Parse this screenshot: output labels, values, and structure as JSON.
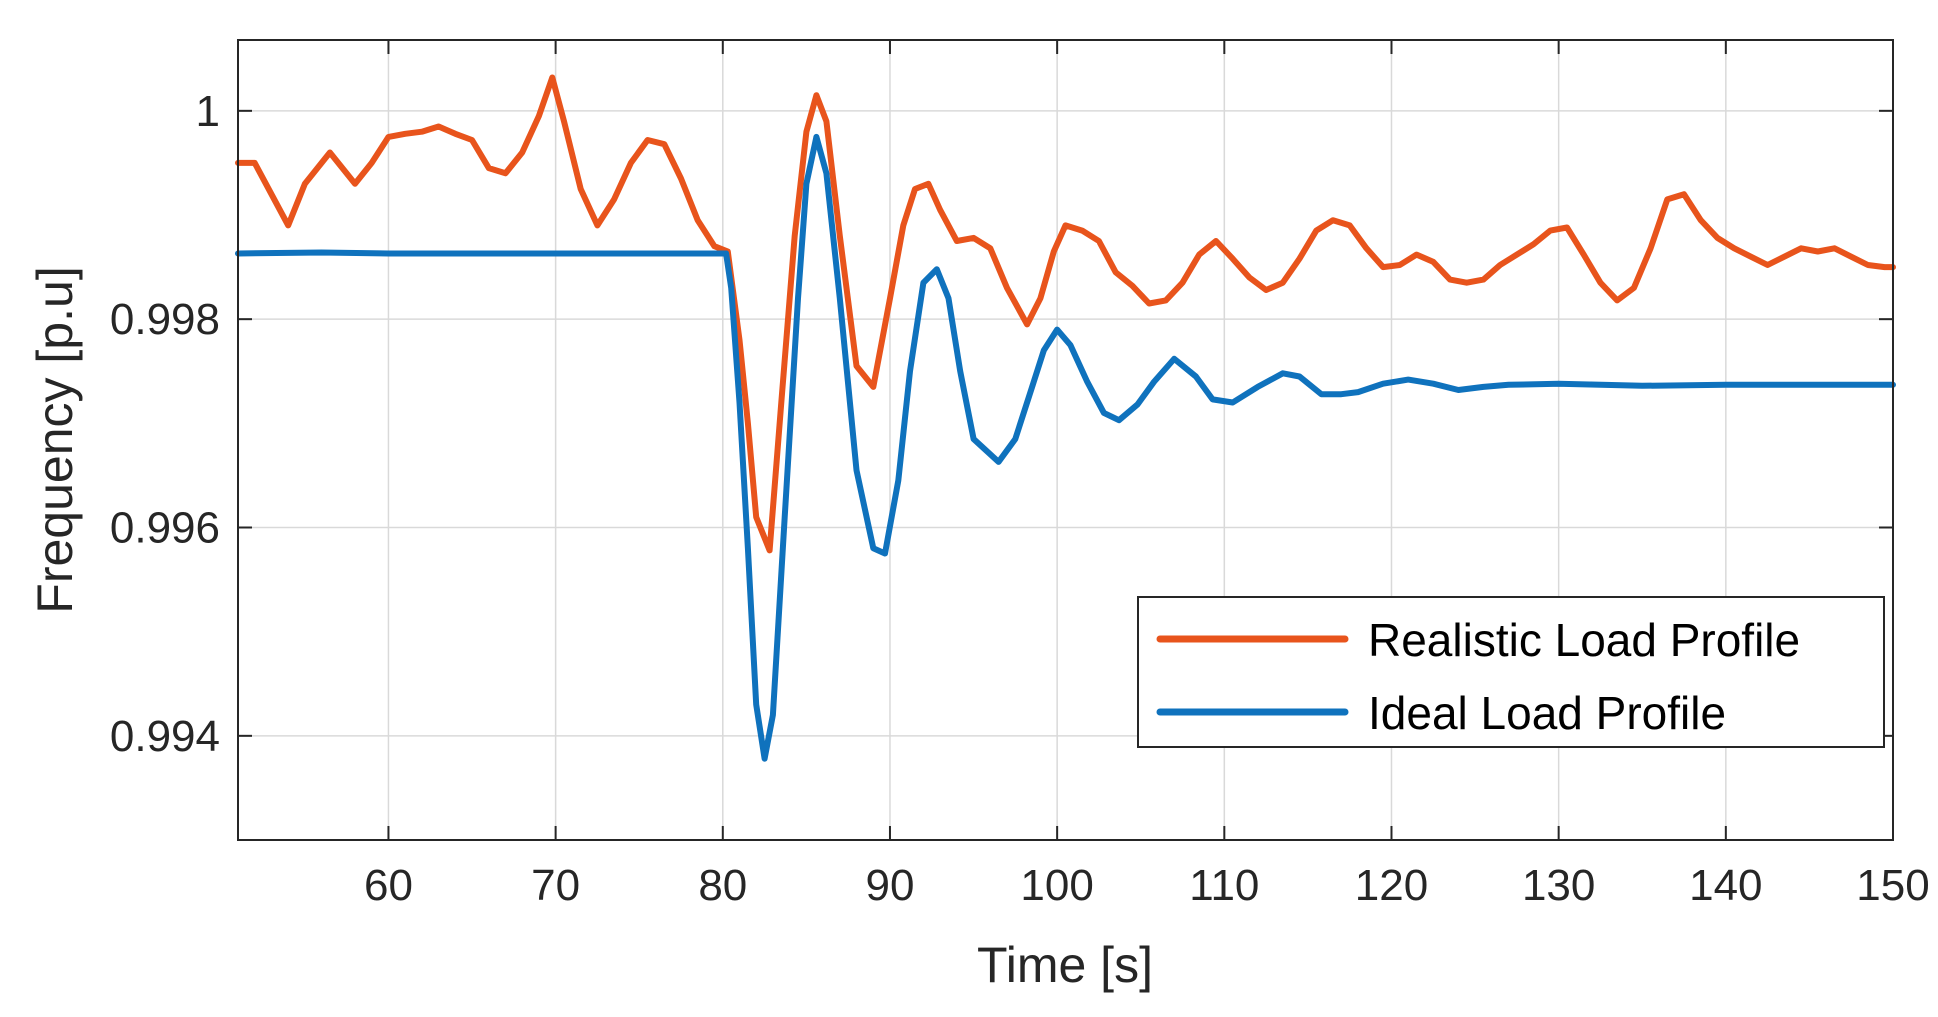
{
  "chart_data": {
    "type": "line",
    "title": "",
    "xlabel": "Time [s]",
    "ylabel": "Frequency [p.u]",
    "xlim": [
      51,
      150
    ],
    "ylim": [
      0.993,
      1.00068
    ],
    "grid": true,
    "legend_position": "bottom-right",
    "x_ticks": [
      60,
      70,
      80,
      90,
      100,
      110,
      120,
      130,
      140,
      150
    ],
    "y_ticks": [
      0.994,
      0.996,
      0.998,
      1.0
    ],
    "x_tick_labels": [
      "60",
      "70",
      "80",
      "90",
      "100",
      "110",
      "120",
      "130",
      "140",
      "150"
    ],
    "y_tick_labels": [
      "0.994",
      "0.996",
      "0.998",
      "1"
    ],
    "colors": {
      "realistic": "#E8541C",
      "ideal": "#0F72BD"
    },
    "series": [
      {
        "name": "Realistic Load Profile",
        "color": "#E8541C",
        "x": [
          51,
          52,
          54,
          55,
          56.5,
          58,
          59,
          60,
          61,
          62,
          63,
          64,
          65,
          66,
          67,
          68,
          69,
          69.8,
          70.5,
          71.5,
          72.5,
          73.5,
          74.5,
          75.5,
          76.5,
          77.5,
          78.5,
          79.5,
          80.3,
          81,
          81.5,
          82,
          82.8,
          83.5,
          84.3,
          85,
          85.6,
          86.2,
          87,
          88,
          89,
          90,
          90.8,
          91.5,
          92.3,
          93,
          94,
          95,
          96,
          97,
          98.2,
          99,
          99.8,
          100.5,
          101.5,
          102.5,
          103.5,
          104.5,
          105.5,
          106.5,
          107.5,
          108.5,
          109.5,
          110.5,
          111.5,
          112.5,
          113.5,
          114.5,
          115.5,
          116.5,
          117.5,
          118.5,
          119.5,
          120.5,
          121.5,
          122.5,
          123.5,
          124.5,
          125.5,
          126.5,
          127.5,
          128.5,
          129.5,
          130.5,
          131.5,
          132.5,
          133.5,
          134.5,
          135.5,
          136.5,
          137.5,
          138.5,
          139.5,
          140.5,
          141.5,
          142.5,
          143.5,
          144.5,
          145.5,
          146.5,
          147.5,
          148.5,
          149.5,
          150
        ],
        "y": [
          0.9995,
          0.9995,
          0.9989,
          0.9993,
          0.9996,
          0.9993,
          0.9995,
          0.99975,
          0.99978,
          0.9998,
          0.99985,
          0.99978,
          0.99972,
          0.99945,
          0.9994,
          0.9996,
          0.99995,
          1.00032,
          0.9999,
          0.99925,
          0.9989,
          0.99915,
          0.9995,
          0.99972,
          0.99968,
          0.99935,
          0.99895,
          0.9987,
          0.99865,
          0.9978,
          0.997,
          0.9961,
          0.99578,
          0.9972,
          0.9988,
          0.9998,
          1.00015,
          0.9999,
          0.9988,
          0.99755,
          0.99735,
          0.9982,
          0.9989,
          0.99925,
          0.9993,
          0.99905,
          0.99875,
          0.99878,
          0.99868,
          0.9983,
          0.99795,
          0.9982,
          0.99865,
          0.9989,
          0.99885,
          0.99875,
          0.99845,
          0.99832,
          0.99815,
          0.99818,
          0.99835,
          0.99862,
          0.99875,
          0.99858,
          0.9984,
          0.99828,
          0.99835,
          0.99858,
          0.99885,
          0.99895,
          0.9989,
          0.99868,
          0.9985,
          0.99852,
          0.99862,
          0.99855,
          0.99838,
          0.99835,
          0.99838,
          0.99852,
          0.99862,
          0.99872,
          0.99885,
          0.99888,
          0.99862,
          0.99835,
          0.99818,
          0.9983,
          0.99868,
          0.99915,
          0.9992,
          0.99895,
          0.99878,
          0.99868,
          0.9986,
          0.99852,
          0.9986,
          0.99868,
          0.99865,
          0.99868,
          0.9986,
          0.99852,
          0.9985,
          0.9985
        ]
      },
      {
        "name": "Ideal Load Profile",
        "color": "#0F72BD",
        "x": [
          51,
          56,
          60,
          70,
          79.5,
          80.2,
          80.5,
          81,
          81.5,
          82,
          82.5,
          83,
          83.7,
          84.5,
          85,
          85.6,
          86.2,
          87,
          88,
          89,
          89.7,
          90.5,
          91.2,
          92,
          92.8,
          93.5,
          94.2,
          95,
          96.5,
          97.5,
          98.5,
          99.2,
          100,
          100.8,
          101.8,
          102.8,
          103.7,
          104.8,
          105.8,
          107,
          108.3,
          109.3,
          110.5,
          112,
          113.5,
          114.5,
          115.8,
          117,
          118,
          119.5,
          121,
          122.5,
          124,
          125.5,
          127,
          130,
          135,
          140,
          145,
          150
        ],
        "y": [
          0.99863,
          0.99864,
          0.99863,
          0.99863,
          0.99863,
          0.99863,
          0.9983,
          0.9972,
          0.9958,
          0.9943,
          0.99378,
          0.9942,
          0.9961,
          0.9982,
          0.9993,
          0.99975,
          0.9994,
          0.9982,
          0.99655,
          0.9958,
          0.99575,
          0.99645,
          0.9975,
          0.99835,
          0.99848,
          0.9982,
          0.9975,
          0.99685,
          0.99663,
          0.99685,
          0.99735,
          0.9977,
          0.9979,
          0.99775,
          0.9974,
          0.9971,
          0.99703,
          0.99718,
          0.9974,
          0.99762,
          0.99745,
          0.99723,
          0.9972,
          0.99735,
          0.99748,
          0.99745,
          0.99728,
          0.99728,
          0.9973,
          0.99738,
          0.99742,
          0.99738,
          0.99732,
          0.99735,
          0.99737,
          0.99738,
          0.99736,
          0.99737,
          0.99737,
          0.99737
        ]
      }
    ]
  }
}
